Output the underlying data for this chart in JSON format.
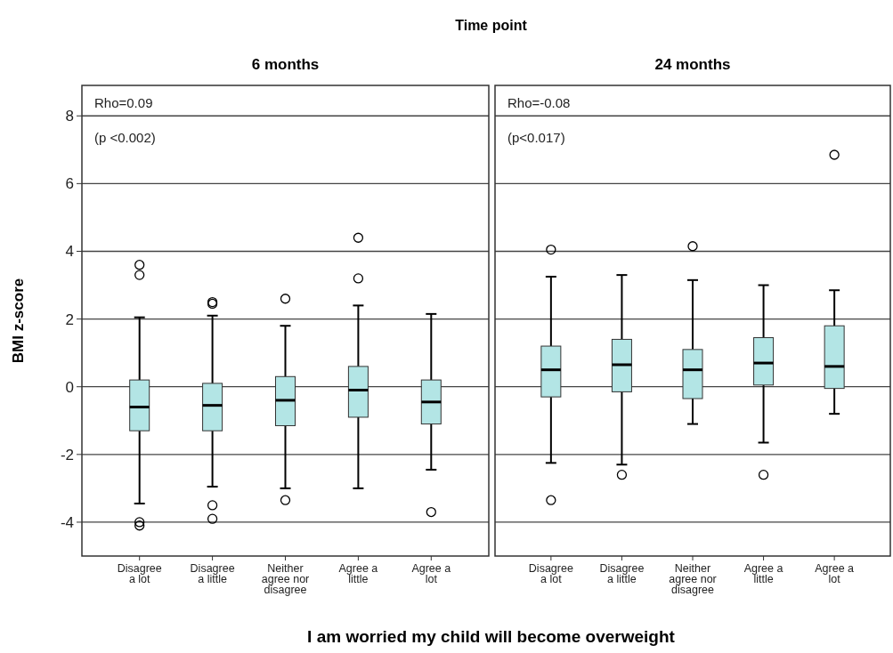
{
  "chart_data": [
    {
      "type": "box",
      "title": "6 months",
      "xlabel": "I am worried my child will become overweight",
      "ylabel": "BMI z-score",
      "annotations": [
        "Time point",
        "Rho=0.09",
        "(p <0.002)"
      ],
      "categories": [
        "Disagree a lot",
        "Disagree a little",
        "Neither agree nor disagree",
        "Agree a little",
        "Agree a lot"
      ],
      "color": "#b3e5e5",
      "ylim": [
        -5,
        8.9
      ],
      "yticks": [
        -4,
        -2,
        0,
        2,
        4,
        6,
        8
      ],
      "grid": "y",
      "boxes": [
        {
          "low": -3.45,
          "q1": -1.3,
          "median": -0.6,
          "q3": 0.2,
          "high": 2.05,
          "outliers": [
            3.6,
            3.3,
            -4.0,
            -4.1
          ]
        },
        {
          "low": -2.95,
          "q1": -1.3,
          "median": -0.55,
          "q3": 0.1,
          "high": 2.1,
          "outliers": [
            2.5,
            2.45,
            -3.5,
            -3.9
          ]
        },
        {
          "low": -3.0,
          "q1": -1.15,
          "median": -0.4,
          "q3": 0.3,
          "high": 1.8,
          "outliers": [
            2.6,
            -3.35
          ]
        },
        {
          "low": -3.0,
          "q1": -0.9,
          "median": -0.1,
          "q3": 0.6,
          "high": 2.4,
          "outliers": [
            4.4,
            3.2
          ]
        },
        {
          "low": -2.45,
          "q1": -1.1,
          "median": -0.45,
          "q3": 0.2,
          "high": 2.15,
          "outliers": [
            -3.7
          ]
        }
      ]
    },
    {
      "type": "box",
      "title": "24 months",
      "annotations": [
        "Rho=-0.08",
        "(p<0.017)"
      ],
      "categories": [
        "Disagree a lot",
        "Disagree a little",
        "Neither agree nor disagree",
        "Agree a little",
        "Agree a lot"
      ],
      "color": "#b3e5e5",
      "ylim": [
        -5,
        8.9
      ],
      "yticks": [
        -4,
        -2,
        0,
        2,
        4,
        6,
        8
      ],
      "grid": "y",
      "tick_labels": "x",
      "boxes": [
        {
          "low": -2.25,
          "q1": -0.3,
          "median": 0.5,
          "q3": 1.2,
          "high": 3.25,
          "outliers": [
            4.05,
            -3.35
          ]
        },
        {
          "low": -2.3,
          "q1": -0.15,
          "median": 0.65,
          "q3": 1.4,
          "high": 3.3,
          "outliers": [
            -2.6
          ]
        },
        {
          "low": -1.1,
          "q1": -0.35,
          "median": 0.5,
          "q3": 1.1,
          "high": 3.15,
          "outliers": [
            4.15
          ]
        },
        {
          "low": -1.65,
          "q1": 0.05,
          "median": 0.7,
          "q3": 1.45,
          "high": 3.0,
          "outliers": [
            -2.6
          ]
        },
        {
          "low": -0.8,
          "q1": -0.05,
          "median": 0.6,
          "q3": 1.8,
          "high": 2.85,
          "outliers": [
            6.85
          ]
        }
      ]
    }
  ]
}
